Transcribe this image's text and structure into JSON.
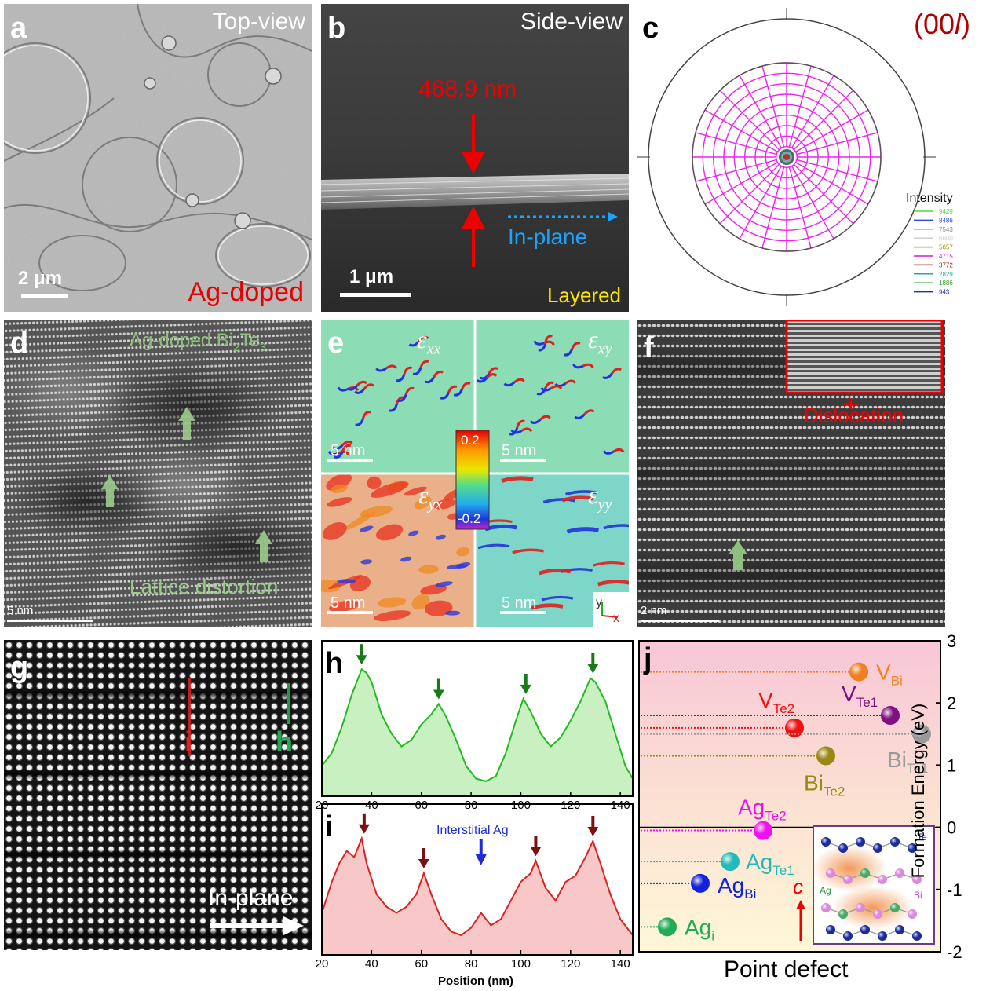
{
  "panel_a": {
    "label": "a",
    "view": "Top-view",
    "scale": "2 μm",
    "sample": "Ag-doped"
  },
  "panel_b": {
    "label": "b",
    "view": "Side-view",
    "thickness": "468.9 nm",
    "direction": "In-plane",
    "scale": "1 μm",
    "structure": "Layered"
  },
  "panel_c": {
    "label": "c",
    "title_pre": "(00",
    "title_var": "l",
    "title_post": ")",
    "legend_title": "Intensity",
    "legend": [
      {
        "value": "9429",
        "color": "#44dd44"
      },
      {
        "value": "8486",
        "color": "#3344ee"
      },
      {
        "value": "7543",
        "color": "#888888"
      },
      {
        "value": "6600",
        "color": "#cccccc"
      },
      {
        "value": "5657",
        "color": "#999900"
      },
      {
        "value": "4715",
        "color": "#cc22cc"
      },
      {
        "value": "3772",
        "color": "#aa2222"
      },
      {
        "value": "2829",
        "color": "#22aaaa"
      },
      {
        "value": "1886",
        "color": "#22aa22"
      },
      {
        "value": "943",
        "color": "#2233aa"
      }
    ]
  },
  "panel_d": {
    "label": "d",
    "title_pre": "Ag-doped Bi",
    "title_sub1": "2",
    "title_mid": "Te",
    "title_sub2": "3",
    "annotation": "Lattice distortion",
    "scale": "5 nm"
  },
  "panel_e": {
    "label": "e",
    "components": [
      {
        "sym": "ε",
        "sub": "xx"
      },
      {
        "sym": "ε",
        "sub": "xy"
      },
      {
        "sym": "ε",
        "sub": "yx"
      },
      {
        "sym": "ε",
        "sub": "yy"
      }
    ],
    "scale": "5 nm",
    "colorbar_max": "0.2",
    "colorbar_min": "-0.2",
    "axis_y": "y",
    "axis_x": "x"
  },
  "panel_f": {
    "label": "f",
    "inset_label": "Dislocation",
    "scale": "2 nm"
  },
  "panel_g": {
    "label": "g",
    "line_i": "i",
    "line_h": "h",
    "direction": "In-plane"
  },
  "panel_h": {
    "label": "h"
  },
  "panel_i": {
    "label": "i",
    "annotation": "Interstitial Ag"
  },
  "profile_axis": {
    "xlabel": "Position (nm)",
    "ticks": [
      "20",
      "40",
      "60",
      "80",
      "100",
      "120",
      "140"
    ]
  },
  "panel_j": {
    "label": "j",
    "ylabel": "Formation Energy (eV)",
    "xlabel": "Point defect",
    "yticks": [
      "3",
      "2",
      "1",
      "0",
      "-1",
      "-2"
    ],
    "c_axis": "c",
    "inset_te": "Te",
    "inset_ag": "Ag",
    "inset_bi": "Bi"
  },
  "chart_data": [
    {
      "type": "area",
      "panel": "h",
      "xlabel": "Position (nm)",
      "xlim": [
        20,
        145
      ],
      "x": [
        20,
        24,
        28,
        32,
        36,
        38,
        40,
        44,
        48,
        52,
        56,
        60,
        64,
        67,
        70,
        74,
        78,
        82,
        86,
        90,
        94,
        98,
        101,
        104,
        108,
        112,
        116,
        120,
        124,
        128,
        130,
        134,
        138,
        142,
        145
      ],
      "y": [
        0.2,
        0.3,
        0.5,
        0.75,
        0.95,
        0.92,
        0.85,
        0.6,
        0.45,
        0.35,
        0.4,
        0.52,
        0.6,
        0.68,
        0.58,
        0.4,
        0.2,
        0.1,
        0.08,
        0.12,
        0.3,
        0.55,
        0.72,
        0.62,
        0.45,
        0.35,
        0.42,
        0.55,
        0.7,
        0.88,
        0.85,
        0.7,
        0.45,
        0.2,
        0.1
      ],
      "peaks": [
        36,
        67,
        102,
        129
      ],
      "color": "#22bb22"
    },
    {
      "type": "area",
      "panel": "i",
      "xlabel": "Position (nm)",
      "xlim": [
        20,
        145
      ],
      "x": [
        20,
        24,
        27,
        30,
        33,
        36,
        38,
        42,
        46,
        50,
        54,
        58,
        61,
        64,
        68,
        72,
        76,
        80,
        84,
        88,
        92,
        96,
        100,
        104,
        106,
        110,
        114,
        118,
        122,
        126,
        129,
        132,
        136,
        140,
        145
      ],
      "y": [
        0.3,
        0.55,
        0.7,
        0.8,
        0.75,
        0.9,
        0.7,
        0.45,
        0.35,
        0.3,
        0.35,
        0.45,
        0.62,
        0.45,
        0.25,
        0.15,
        0.12,
        0.18,
        0.3,
        0.2,
        0.25,
        0.4,
        0.55,
        0.62,
        0.72,
        0.5,
        0.4,
        0.55,
        0.6,
        0.75,
        0.88,
        0.7,
        0.45,
        0.25,
        0.12
      ],
      "peaks": [
        37,
        61,
        106,
        129
      ],
      "interstitial_peak": 84,
      "color": "#dd2222"
    },
    {
      "type": "scatter",
      "panel": "j",
      "xlabel": "Point defect",
      "ylabel": "Formation Energy (eV)",
      "ylim": [
        -2,
        3
      ],
      "points": [
        {
          "name": "V",
          "sub": "Bi",
          "value": 2.5,
          "color": "#f08020"
        },
        {
          "name": "V",
          "sub": "Te1",
          "value": 1.8,
          "color": "#801080"
        },
        {
          "name": "V",
          "sub": "Te2",
          "value": 1.6,
          "color": "#ee1111"
        },
        {
          "name": "Bi",
          "sub": "Te1",
          "value": 1.5,
          "color": "#999999"
        },
        {
          "name": "Bi",
          "sub": "Te2",
          "value": 1.15,
          "color": "#998811"
        },
        {
          "name": "Ag",
          "sub": "Te2",
          "value": -0.05,
          "color": "#ee11ee"
        },
        {
          "name": "Ag",
          "sub": "Te1",
          "value": -0.55,
          "color": "#22bbbb"
        },
        {
          "name": "Ag",
          "sub": "Bi",
          "value": -0.9,
          "color": "#1122dd"
        },
        {
          "name": "Ag",
          "sub": "i",
          "value": -1.6,
          "color": "#22aa55"
        }
      ]
    }
  ]
}
